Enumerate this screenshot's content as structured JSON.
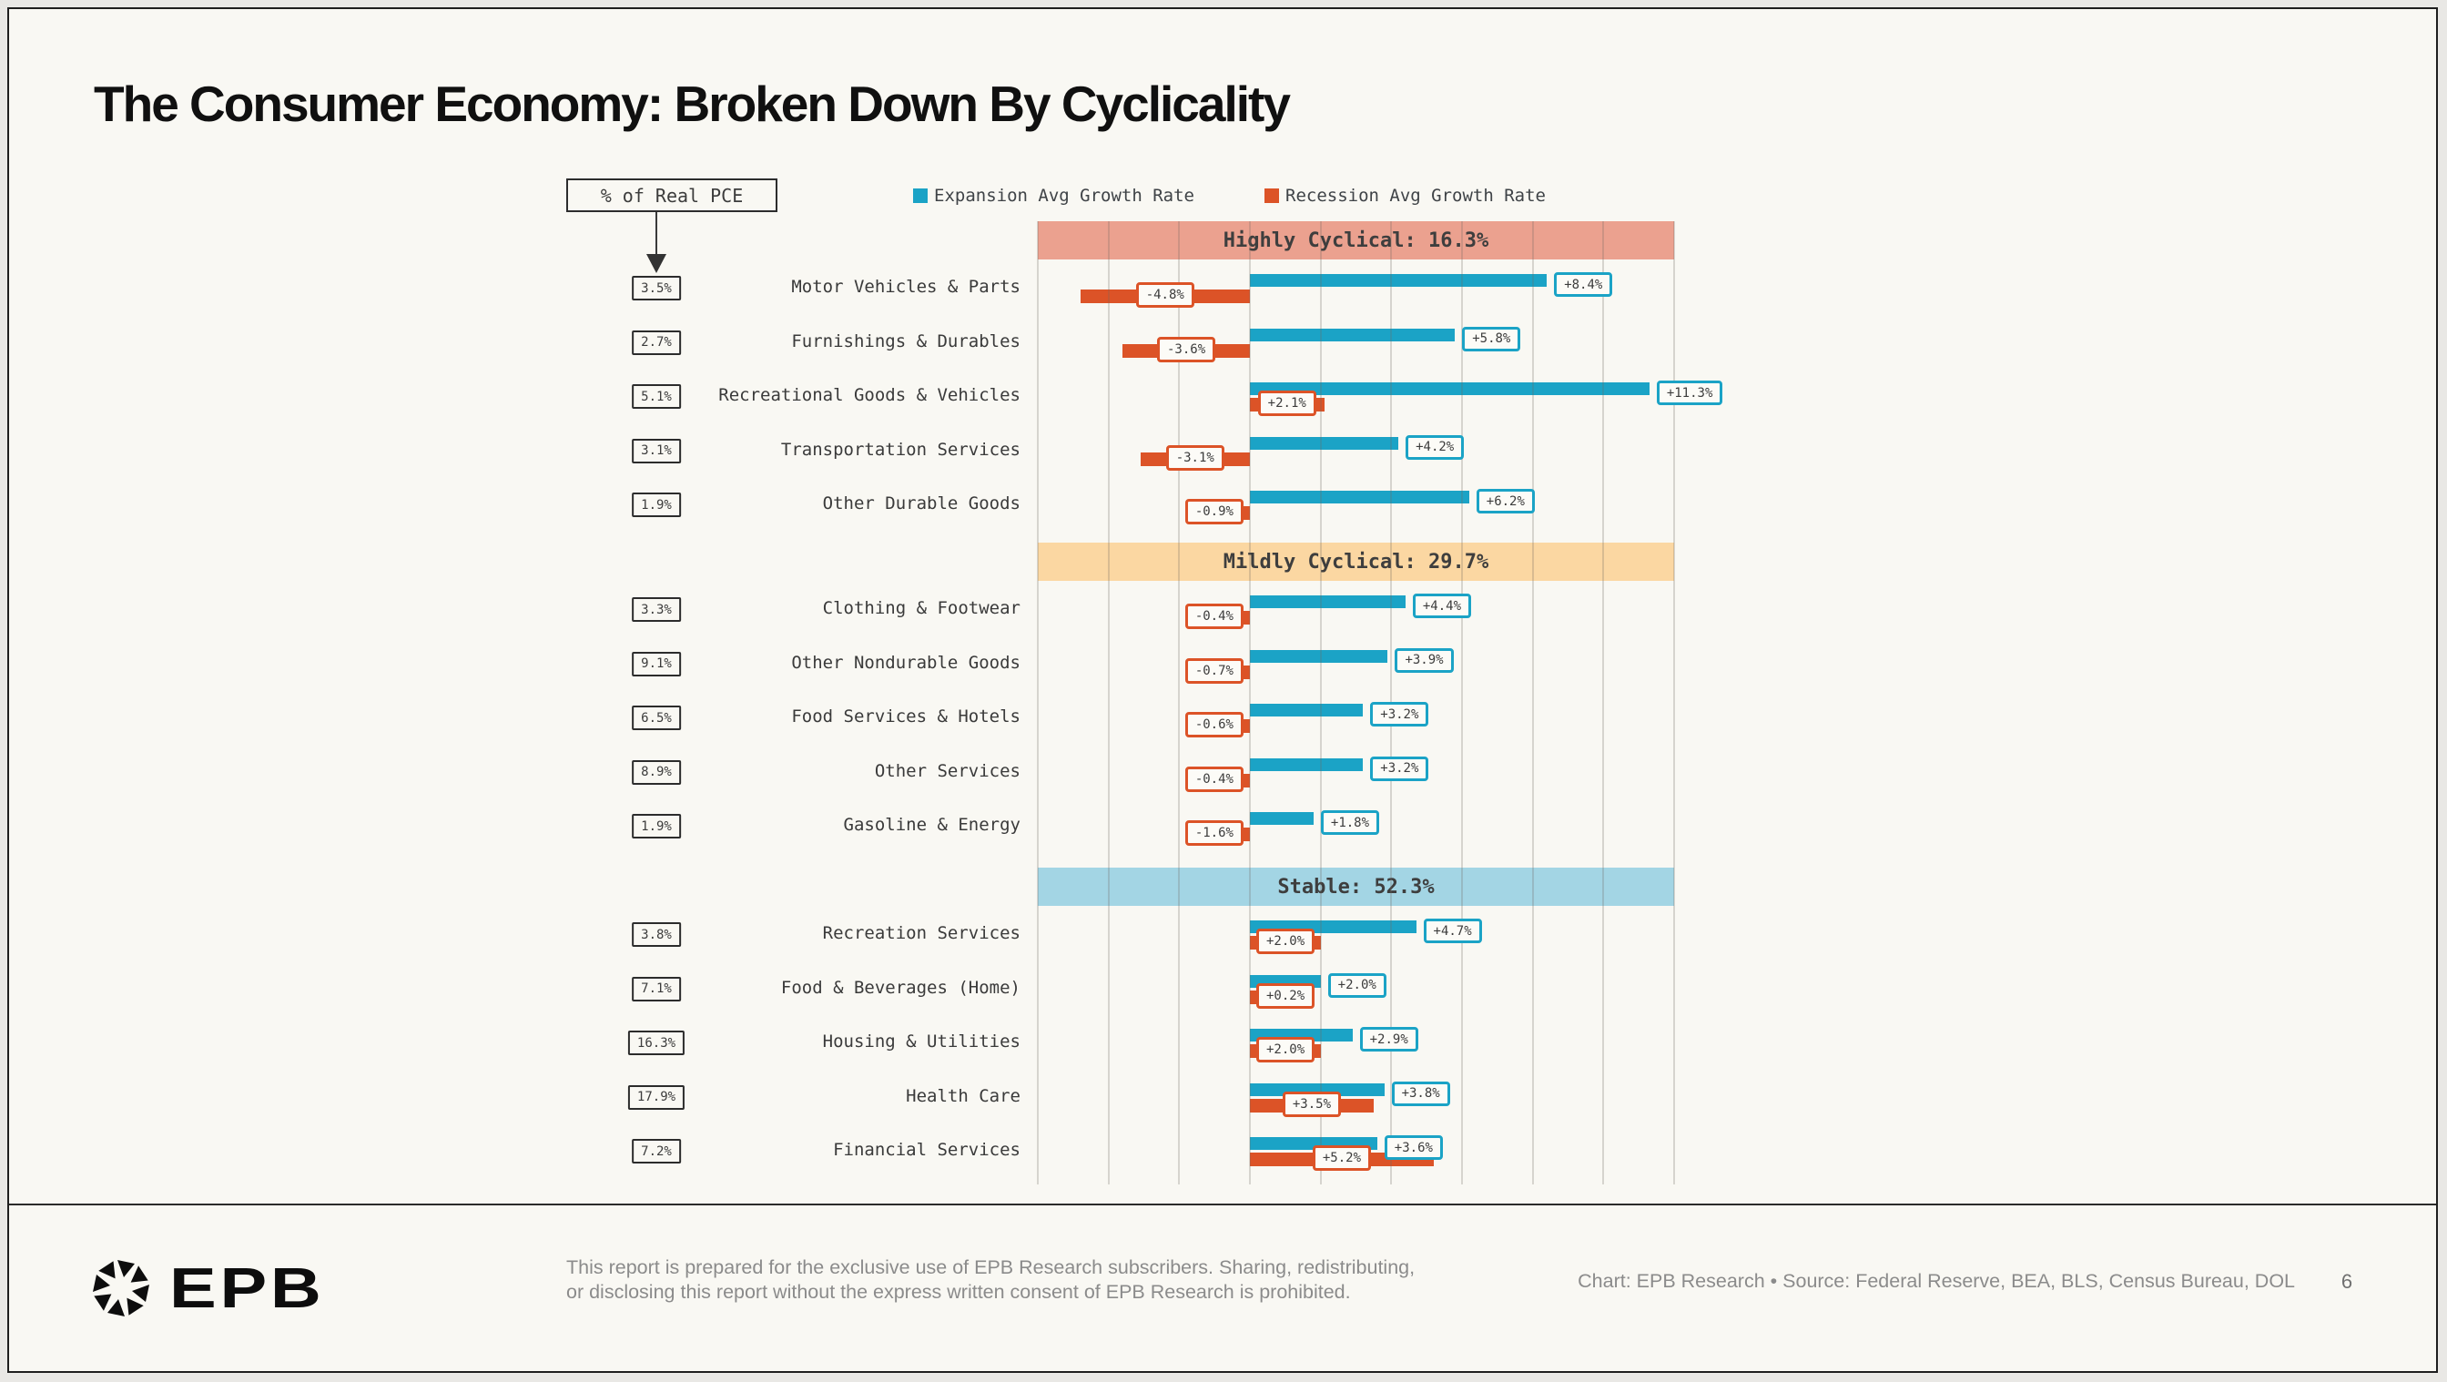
{
  "title": "The Consumer Economy: Broken Down By Cyclicality",
  "pce_annotation": "% of Real PCE",
  "legend": {
    "expansion": "Expansion Avg Growth Rate",
    "recession": "Recession Avg Growth Rate"
  },
  "colors": {
    "expansion": "#1ba3c6",
    "recession": "#dc5327",
    "band_highly_cyclical": "#eba18f",
    "band_mildly_cyclical": "#fbd7a2",
    "band_stable": "#a3d5e4",
    "background": "#f9f8f3"
  },
  "chart_data": {
    "type": "bar",
    "orientation": "horizontal",
    "xlim": [
      -6,
      12
    ],
    "gridline_step": 2,
    "grid": true,
    "legend_entries": [
      "Expansion Avg Growth Rate",
      "Recession Avg Growth Rate"
    ],
    "sections": [
      {
        "header": "Highly Cyclical: 16.3%",
        "band": "highly",
        "rows": [
          {
            "pce_share": "3.5%",
            "category": "Motor Vehicles & Parts",
            "expansion": 8.4,
            "recession": -4.8,
            "expansion_label": "+8.4%",
            "recession_label": "-4.8%"
          },
          {
            "pce_share": "2.7%",
            "category": "Furnishings & Durables",
            "expansion": 5.8,
            "recession": -3.6,
            "expansion_label": "+5.8%",
            "recession_label": "-3.6%"
          },
          {
            "pce_share": "5.1%",
            "category": "Recreational Goods & Vehicles",
            "expansion": 11.3,
            "recession": 2.1,
            "expansion_label": "+11.3%",
            "recession_label": "+2.1%"
          },
          {
            "pce_share": "3.1%",
            "category": "Transportation Services",
            "expansion": 4.2,
            "recession": -3.1,
            "expansion_label": "+4.2%",
            "recession_label": "-3.1%"
          },
          {
            "pce_share": "1.9%",
            "category": "Other Durable Goods",
            "expansion": 6.2,
            "recession": -0.9,
            "expansion_label": "+6.2%",
            "recession_label": "-0.9%"
          }
        ]
      },
      {
        "header": "Mildly Cyclical: 29.7%",
        "band": "mildly",
        "rows": [
          {
            "pce_share": "3.3%",
            "category": "Clothing & Footwear",
            "expansion": 4.4,
            "recession": -0.4,
            "expansion_label": "+4.4%",
            "recession_label": "-0.4%"
          },
          {
            "pce_share": "9.1%",
            "category": "Other Nondurable Goods",
            "expansion": 3.9,
            "recession": -0.7,
            "expansion_label": "+3.9%",
            "recession_label": "-0.7%"
          },
          {
            "pce_share": "6.5%",
            "category": "Food Services & Hotels",
            "expansion": 3.2,
            "recession": -0.6,
            "expansion_label": "+3.2%",
            "recession_label": "-0.6%"
          },
          {
            "pce_share": "8.9%",
            "category": "Other Services",
            "expansion": 3.2,
            "recession": -0.4,
            "expansion_label": "+3.2%",
            "recession_label": "-0.4%"
          },
          {
            "pce_share": "1.9%",
            "category": "Gasoline & Energy",
            "expansion": 1.8,
            "recession": -1.6,
            "expansion_label": "+1.8%",
            "recession_label": "-1.6%"
          }
        ]
      },
      {
        "header": "Stable: 52.3%",
        "band": "stable",
        "rows": [
          {
            "pce_share": "3.8%",
            "category": "Recreation Services",
            "expansion": 4.7,
            "recession": 2.0,
            "expansion_label": "+4.7%",
            "recession_label": "+2.0%"
          },
          {
            "pce_share": "7.1%",
            "category": "Food & Beverages (Home)",
            "expansion": 2.0,
            "recession": 0.2,
            "expansion_label": "+2.0%",
            "recession_label": "+0.2%"
          },
          {
            "pce_share": "16.3%",
            "category": "Housing & Utilities",
            "expansion": 2.9,
            "recession": 2.0,
            "expansion_label": "+2.9%",
            "recession_label": "+2.0%"
          },
          {
            "pce_share": "17.9%",
            "category": "Health Care",
            "expansion": 3.8,
            "recession": 3.5,
            "expansion_label": "+3.8%",
            "recession_label": "+3.5%"
          },
          {
            "pce_share": "7.2%",
            "category": "Financial Services",
            "expansion": 3.6,
            "recession": 5.2,
            "expansion_label": "+3.6%",
            "recession_label": "+5.2%"
          }
        ]
      }
    ]
  },
  "footer": {
    "logo_text": "EPB",
    "disclaimer": [
      "This report is prepared for the exclusive use of EPB Research subscribers. Sharing, redistributing,",
      "or disclosing this report without the express written consent of EPB Research is prohibited."
    ],
    "credit": "Chart: EPB Research  •  Source: Federal Reserve, BEA, BLS, Census Bureau, DOL",
    "page_number": "6"
  }
}
